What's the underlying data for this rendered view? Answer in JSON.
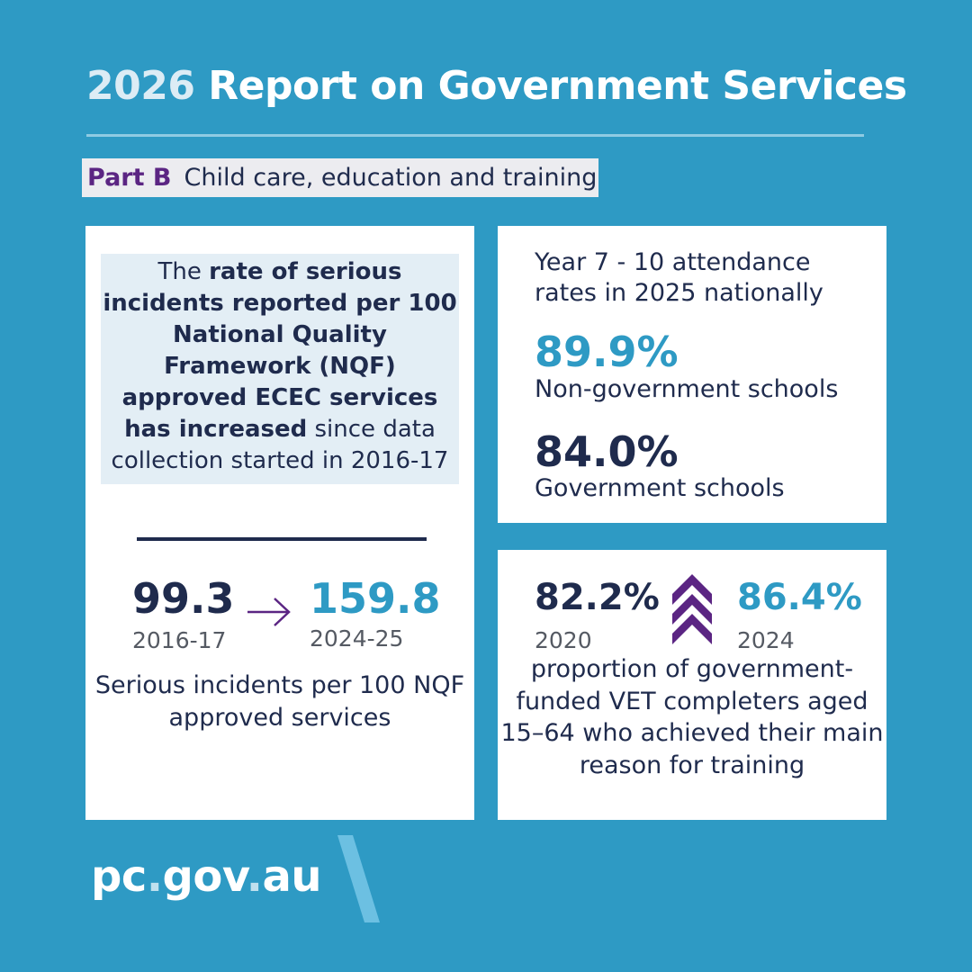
{
  "header": {
    "year": "2026",
    "title": "Report on Government Services"
  },
  "part": {
    "tag": "Part B",
    "label": "Child care, education and training"
  },
  "left_card": {
    "intro_1": "The ",
    "intro_bold_1": "rate of serious incidents reported per 100 National Quality Framework (NQF) approved ECEC services has increased",
    "intro_2": " since data collection started in 2016-17",
    "from_value": "99.3",
    "from_year": "2016-17",
    "to_value": "159.8",
    "to_year": "2024-25",
    "caption": "Serious incidents per 100 NQF approved services"
  },
  "top_right_card": {
    "heading": "Year 7 - 10 attendance rates in 2025 nationally",
    "stat_1_value": "89.9%",
    "stat_1_label": "Non-government schools",
    "stat_2_value": "84.0%",
    "stat_2_label": "Government schools"
  },
  "bottom_right_card": {
    "from_value": "82.2%",
    "from_year": "2020",
    "to_value": "86.4%",
    "to_year": "2024",
    "caption": "proportion of government-funded VET completers aged 15–64 who achieved their main reason for training"
  },
  "footer": {
    "logo_1": "pc",
    "logo_dot_1": ".",
    "logo_2": "gov",
    "logo_dot_2": ".",
    "logo_3": "au"
  },
  "colors": {
    "background": "#2e9ac4",
    "navy": "#1f2b4d",
    "accent_blue": "#2e9ac4",
    "purple": "#5b2583"
  },
  "icons": [
    "right-arrow-icon",
    "triple-chevron-up-icon",
    "slash-mark-icon"
  ]
}
